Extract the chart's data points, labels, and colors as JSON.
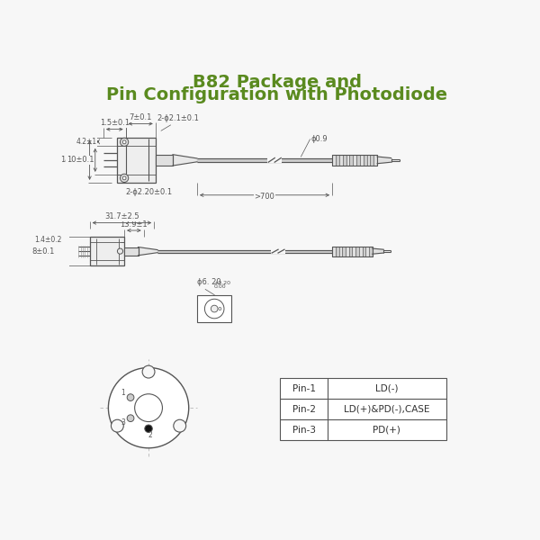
{
  "title_line1": "B82 Package and",
  "title_line2": "Pin Configuration with Photodiode",
  "title_color": "#5a8a1f",
  "title_fontsize": 14,
  "bg_color": "#f7f7f7",
  "line_color": "#555555",
  "dim_color": "#555555",
  "dim_fontsize": 6.0,
  "pin_table": {
    "pins": [
      "Pin-1",
      "Pin-2",
      "Pin-3"
    ],
    "functions": [
      "LD(-)",
      "LD(+)&PD(-),CASE",
      "PD(+)"
    ]
  }
}
